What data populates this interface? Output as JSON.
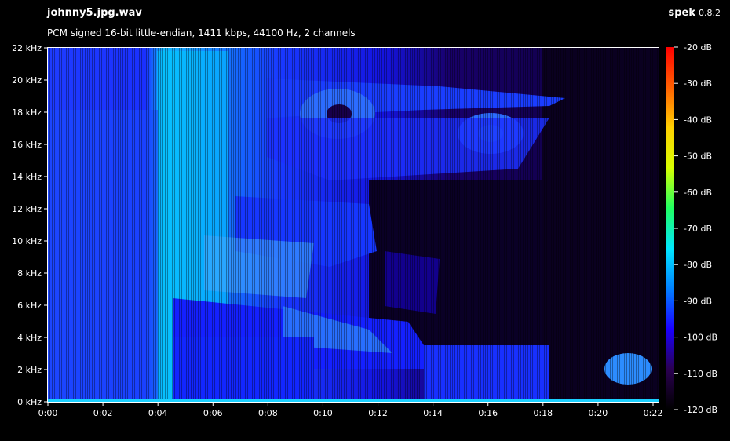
{
  "header": {
    "filename": "johnny5.jpg.wav",
    "info": "PCM signed 16-bit little-endian, 1411 kbps, 44100 Hz, 2 channels",
    "app_name": "spek",
    "app_version": "0.8.2"
  },
  "chart_data": {
    "type": "heatmap",
    "x": {
      "ticks": [
        "0:00",
        "0:02",
        "0:04",
        "0:06",
        "0:08",
        "0:10",
        "0:12",
        "0:14",
        "0:16",
        "0:18",
        "0:20",
        "0:22"
      ],
      "tick_values_s": [
        0,
        2,
        4,
        6,
        8,
        10,
        12,
        14,
        16,
        18,
        20,
        22
      ],
      "range_s": [
        0,
        22.2
      ]
    },
    "y": {
      "ticks": [
        "0 kHz",
        "2 kHz",
        "4 kHz",
        "6 kHz",
        "8 kHz",
        "10 kHz",
        "12 kHz",
        "14 kHz",
        "16 kHz",
        "18 kHz",
        "20 kHz",
        "22 kHz"
      ],
      "tick_values_khz": [
        0,
        2,
        4,
        6,
        8,
        10,
        12,
        14,
        16,
        18,
        20,
        22
      ],
      "range_khz": [
        0,
        22
      ]
    },
    "colorbar": {
      "ticks": [
        "-20 dB",
        "-30 dB",
        "-40 dB",
        "-50 dB",
        "-60 dB",
        "-70 dB",
        "-80 dB",
        "-90 dB",
        "-100 dB",
        "-110 dB",
        "-120 dB"
      ],
      "tick_values_db": [
        -20,
        -30,
        -40,
        -50,
        -60,
        -70,
        -80,
        -90,
        -100,
        -110,
        -120
      ],
      "range_db": [
        -120,
        -20
      ],
      "colors": [
        "#000000",
        "#2a0050",
        "#1a00ff",
        "#0080ff",
        "#00e8ff",
        "#20ff60",
        "#d8ff00",
        "#ffd000",
        "#ff6000",
        "#ff0000"
      ]
    },
    "grid": false,
    "colors": {
      "background": "#000000",
      "spectrogram_low": "#1c0064",
      "spectrogram_mid": "#1414ff",
      "spectrogram_high": "#00d0ff"
    }
  }
}
